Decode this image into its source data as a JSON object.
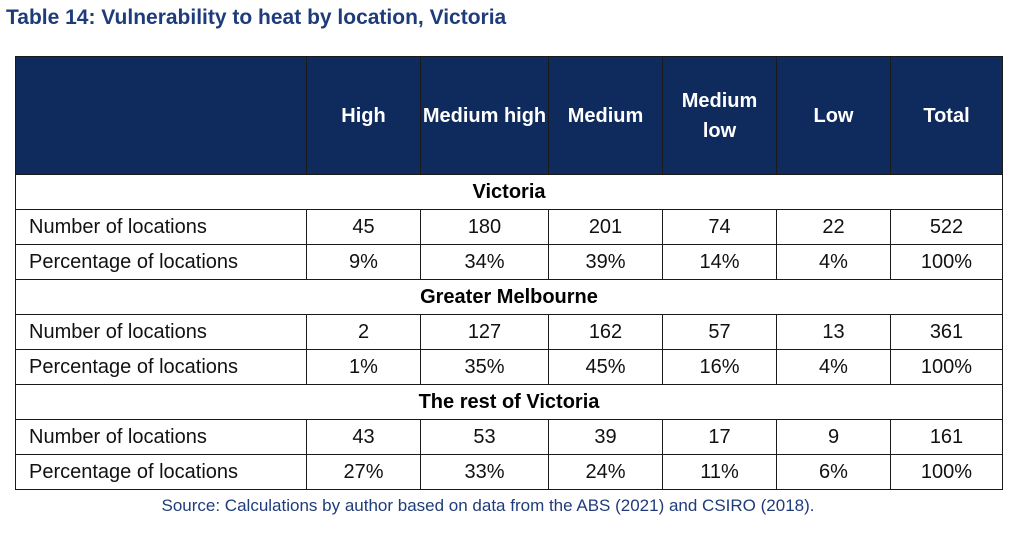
{
  "title": "Table 14: Vulnerability to heat by location, Victoria",
  "columns": [
    "",
    "High",
    "Medium high",
    "Medium",
    "Medium low",
    "Low",
    "Total"
  ],
  "sections": [
    {
      "name": "Victoria",
      "rows": [
        {
          "label": "Number of locations",
          "values": [
            "45",
            "180",
            "201",
            "74",
            "22",
            "522"
          ]
        },
        {
          "label": "Percentage of locations",
          "values": [
            "9%",
            "34%",
            "39%",
            "14%",
            "4%",
            "100%"
          ]
        }
      ]
    },
    {
      "name": "Greater Melbourne",
      "rows": [
        {
          "label": "Number of locations",
          "values": [
            "2",
            "127",
            "162",
            "57",
            "13",
            "361"
          ]
        },
        {
          "label": "Percentage of locations",
          "values": [
            "1%",
            "35%",
            "45%",
            "16%",
            "4%",
            "100%"
          ]
        }
      ]
    },
    {
      "name": "The rest of Victoria",
      "rows": [
        {
          "label": "Number of locations",
          "values": [
            "43",
            "53",
            "39",
            "17",
            "9",
            "161"
          ]
        },
        {
          "label": "Percentage of locations",
          "values": [
            "27%",
            "33%",
            "24%",
            "11%",
            "6%",
            "100%"
          ]
        }
      ]
    }
  ],
  "source": "Source: Calculations by author based on data from the ABS (2021) and CSIRO (2018).",
  "colors": {
    "header_background": "#0f2a5c",
    "title_text": "#1f3c7a"
  }
}
